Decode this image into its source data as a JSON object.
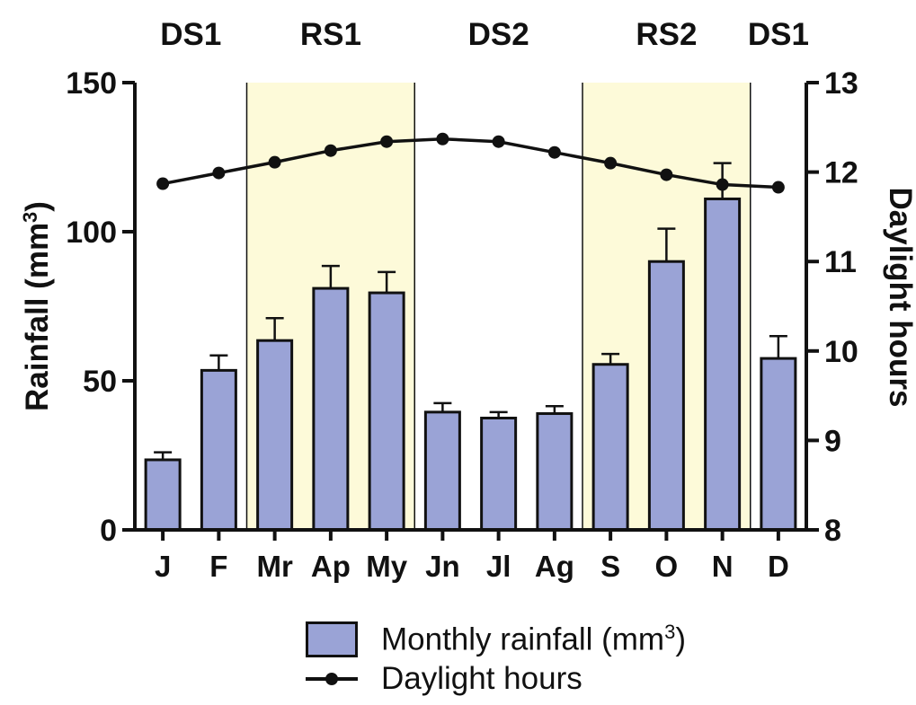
{
  "chart_data": {
    "type": "bar",
    "categories": [
      "J",
      "F",
      "Mr",
      "Ap",
      "My",
      "Jn",
      "Jl",
      "Ag",
      "S",
      "O",
      "N",
      "D"
    ],
    "series": [
      {
        "name": "Monthly rainfall (mm3)",
        "type": "bar",
        "axis": "left",
        "values": [
          23.5,
          53.5,
          63.5,
          81,
          79.5,
          39.5,
          37.5,
          39,
          55.5,
          90,
          111,
          57.5
        ],
        "error": [
          2.5,
          5,
          7.5,
          7.5,
          7,
          3,
          2,
          2.5,
          3.5,
          11,
          12,
          7.5
        ]
      },
      {
        "name": "Daylight hours",
        "type": "line",
        "axis": "right",
        "values": [
          11.87,
          11.99,
          12.11,
          12.24,
          12.34,
          12.37,
          12.34,
          12.22,
          12.1,
          11.97,
          11.86,
          11.83
        ]
      }
    ],
    "y_left": {
      "label": "Rainfall (mm3)",
      "label_main": "Rainfall (mm",
      "label_sup": "3",
      "label_end": ")",
      "range": [
        0,
        150
      ],
      "ticks": [
        "0",
        "50",
        "100",
        "150"
      ]
    },
    "y_right": {
      "label": "Daylight hours",
      "range": [
        8,
        13
      ],
      "ticks": [
        "8",
        "9",
        "10",
        "11",
        "12",
        "13"
      ]
    },
    "season_labels": [
      "DS1",
      "RS1",
      "DS2",
      "RS2",
      "DS1"
    ],
    "season_bands": [
      {
        "label": "DS1",
        "from_index": 0,
        "to_index": 1,
        "shaded": false
      },
      {
        "label": "RS1",
        "from_index": 2,
        "to_index": 4,
        "shaded": true
      },
      {
        "label": "DS2",
        "from_index": 5,
        "to_index": 7,
        "shaded": false
      },
      {
        "label": "RS2",
        "from_index": 8,
        "to_index": 10,
        "shaded": true
      },
      {
        "label": "DS1",
        "from_index": 11,
        "to_index": 11,
        "shaded": false
      }
    ],
    "legend": {
      "position": "bottom",
      "rainfall_main": "Monthly rainfall (mm",
      "rainfall_sup": "3",
      "rainfall_end": ")",
      "daylight": "Daylight hours"
    },
    "colors": {
      "bar": "#9aa3d6",
      "band": "#fdfad9",
      "line": "#111111"
    },
    "grid": false
  }
}
